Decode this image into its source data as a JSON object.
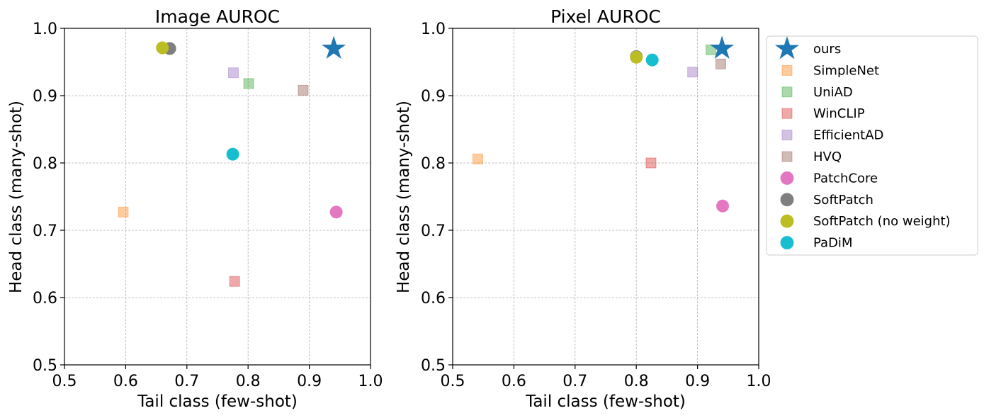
{
  "chart_data": [
    {
      "type": "scatter",
      "title": "Image AUROC",
      "xlabel": "Tail class (few-shot)",
      "ylabel": "Head class (many-shot)",
      "xlim": [
        0.5,
        1.0
      ],
      "ylim": [
        0.5,
        1.0
      ],
      "xticks": [
        "0.5",
        "0.6",
        "0.7",
        "0.8",
        "0.9",
        "1.0"
      ],
      "yticks": [
        "0.5",
        "0.6",
        "0.7",
        "0.8",
        "0.9",
        "1.0"
      ],
      "grid": true,
      "points": [
        {
          "series": "SimpleNet",
          "x": 0.596,
          "y": 0.727
        },
        {
          "series": "UniAD",
          "x": 0.801,
          "y": 0.918
        },
        {
          "series": "WinCLIP",
          "x": 0.778,
          "y": 0.624
        },
        {
          "series": "EfficientAD",
          "x": 0.776,
          "y": 0.934
        },
        {
          "series": "HVQ",
          "x": 0.89,
          "y": 0.908
        },
        {
          "series": "PatchCore",
          "x": 0.944,
          "y": 0.727
        },
        {
          "series": "SoftPatch",
          "x": 0.672,
          "y": 0.97
        },
        {
          "series": "SoftPatch (no weight)",
          "x": 0.66,
          "y": 0.971
        },
        {
          "series": "PaDiM",
          "x": 0.775,
          "y": 0.813
        },
        {
          "series": "ours",
          "x": 0.94,
          "y": 0.97
        }
      ]
    },
    {
      "type": "scatter",
      "title": "Pixel AUROC",
      "xlabel": "Tail class (few-shot)",
      "ylabel": "Head class (many-shot)",
      "xlim": [
        0.5,
        1.0
      ],
      "ylim": [
        0.5,
        1.0
      ],
      "xticks": [
        "0.5",
        "0.6",
        "0.7",
        "0.8",
        "0.9",
        "1.0"
      ],
      "yticks": [
        "0.5",
        "0.6",
        "0.7",
        "0.8",
        "0.9",
        "1.0"
      ],
      "grid": true,
      "legend_position": "outside-right",
      "points": [
        {
          "series": "SimpleNet",
          "x": 0.541,
          "y": 0.806
        },
        {
          "series": "UniAD",
          "x": 0.922,
          "y": 0.968
        },
        {
          "series": "WinCLIP",
          "x": 0.824,
          "y": 0.8
        },
        {
          "series": "EfficientAD",
          "x": 0.892,
          "y": 0.935
        },
        {
          "series": "HVQ",
          "x": 0.938,
          "y": 0.947
        },
        {
          "series": "PatchCore",
          "x": 0.941,
          "y": 0.736
        },
        {
          "series": "SoftPatch",
          "x": 0.8,
          "y": 0.958
        },
        {
          "series": "SoftPatch (no weight)",
          "x": 0.8,
          "y": 0.957
        },
        {
          "series": "PaDiM",
          "x": 0.826,
          "y": 0.953
        },
        {
          "series": "ours",
          "x": 0.94,
          "y": 0.97
        }
      ]
    }
  ],
  "legend": [
    {
      "name": "ours",
      "marker": "star",
      "color": "#1f77b4",
      "alpha": 1.0
    },
    {
      "name": "SimpleNet",
      "marker": "square",
      "color": "#ff7f0e",
      "alpha": 0.4
    },
    {
      "name": "UniAD",
      "marker": "square",
      "color": "#2ca02c",
      "alpha": 0.4
    },
    {
      "name": "WinCLIP",
      "marker": "square",
      "color": "#d62728",
      "alpha": 0.4
    },
    {
      "name": "EfficientAD",
      "marker": "square",
      "color": "#9467bd",
      "alpha": 0.4
    },
    {
      "name": "HVQ",
      "marker": "square",
      "color": "#8c564b",
      "alpha": 0.4
    },
    {
      "name": "PatchCore",
      "marker": "circle",
      "color": "#e377c2",
      "alpha": 1.0
    },
    {
      "name": "SoftPatch",
      "marker": "circle",
      "color": "#7f7f7f",
      "alpha": 1.0
    },
    {
      "name": "SoftPatch (no weight)",
      "marker": "circle",
      "color": "#bcbd22",
      "alpha": 1.0
    },
    {
      "name": "PaDiM",
      "marker": "circle",
      "color": "#17becf",
      "alpha": 1.0
    }
  ]
}
